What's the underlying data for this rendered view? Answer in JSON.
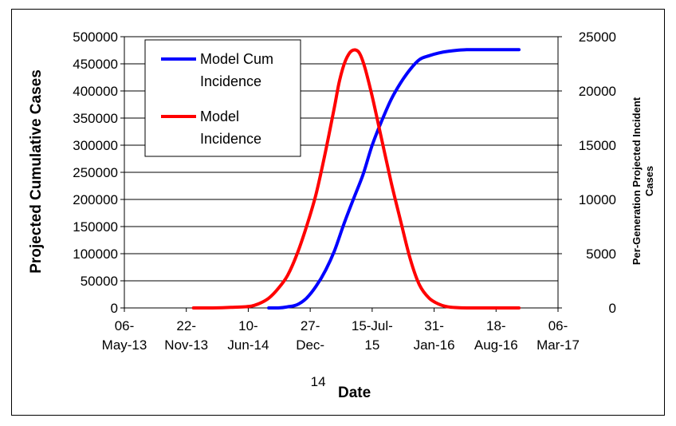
{
  "chart_data": {
    "type": "line",
    "xlabel": "Date",
    "ylabel_left": "Projected Cumulative Cases",
    "ylabel_right": [
      "Per-Generation Projected Incident",
      "Cases"
    ],
    "y_left": {
      "min": 0,
      "max": 500000,
      "step": 50000,
      "ticks": [
        "0",
        "50000",
        "100000",
        "150000",
        "200000",
        "250000",
        "300000",
        "350000",
        "400000",
        "450000",
        "500000"
      ]
    },
    "y_right": {
      "min": 0,
      "max": 25000,
      "step": 5000,
      "ticks": [
        "0",
        "5000",
        "10000",
        "15000",
        "20000",
        "25000"
      ]
    },
    "x_ticks": [
      {
        "date": "2013-05-06",
        "line1": "06-",
        "line2": "May-13",
        "line3": ""
      },
      {
        "date": "2013-11-22",
        "line1": "22-",
        "line2": "Nov-13",
        "line3": ""
      },
      {
        "date": "2014-06-10",
        "line1": "10-",
        "line2": "Jun-14",
        "line3": ""
      },
      {
        "date": "2014-12-27",
        "line1": "27-",
        "line2": "Dec-",
        "line3": "14"
      },
      {
        "date": "2015-07-15",
        "line1": "15-Jul-",
        "line2": "15",
        "line3": ""
      },
      {
        "date": "2016-01-31",
        "line1": "31-",
        "line2": "Jan-16",
        "line3": ""
      },
      {
        "date": "2016-08-18",
        "line1": "18-",
        "line2": "Aug-16",
        "line3": ""
      },
      {
        "date": "2017-03-06",
        "line1": "06-",
        "line2": "Mar-17",
        "line3": ""
      }
    ],
    "series": [
      {
        "name": "Model Cum Incidence",
        "axis": "left",
        "color": "#0000ff",
        "x": [
          "2014-08-15",
          "2014-09-15",
          "2014-10-15",
          "2014-11-15",
          "2014-12-15",
          "2015-01-15",
          "2015-02-15",
          "2015-03-15",
          "2015-04-15",
          "2015-05-15",
          "2015-06-15",
          "2015-07-15",
          "2015-08-15",
          "2015-09-15",
          "2015-10-15",
          "2015-11-15",
          "2015-12-15",
          "2016-01-15",
          "2016-02-15",
          "2016-03-15",
          "2016-04-15",
          "2016-05-15",
          "2016-06-15",
          "2016-07-15",
          "2016-08-15",
          "2016-09-15",
          "2016-10-15",
          "2016-10-31"
        ],
        "y": [
          0,
          0,
          2000,
          6000,
          18000,
          40000,
          70000,
          105000,
          155000,
          200000,
          245000,
          300000,
          345000,
          385000,
          415000,
          440000,
          458000,
          465000,
          470000,
          473000,
          475000,
          476000,
          476000,
          476000,
          476000,
          476000,
          476000,
          476000
        ]
      },
      {
        "name": "Model Incidence",
        "axis": "right",
        "color": "#ff0000",
        "x": [
          "2013-12-15",
          "2014-02-15",
          "2014-04-15",
          "2014-06-15",
          "2014-07-15",
          "2014-08-15",
          "2014-09-15",
          "2014-10-15",
          "2014-11-15",
          "2014-12-15",
          "2015-01-15",
          "2015-02-15",
          "2015-03-15",
          "2015-04-01",
          "2015-04-20",
          "2015-05-10",
          "2015-06-01",
          "2015-06-20",
          "2015-07-15",
          "2015-08-15",
          "2015-09-15",
          "2015-10-15",
          "2015-11-15",
          "2015-12-15",
          "2016-01-15",
          "2016-02-15",
          "2016-03-15",
          "2016-04-15",
          "2016-05-15",
          "2016-06-15",
          "2016-08-15",
          "2016-10-31"
        ],
        "y": [
          0,
          0,
          50,
          150,
          400,
          900,
          1800,
          3000,
          5000,
          7500,
          10500,
          14500,
          18500,
          21000,
          22800,
          23700,
          23600,
          22300,
          19500,
          15500,
          11500,
          8000,
          4500,
          2100,
          900,
          350,
          100,
          30,
          0,
          0,
          0,
          0
        ]
      }
    ],
    "legend_position": "top-left"
  }
}
